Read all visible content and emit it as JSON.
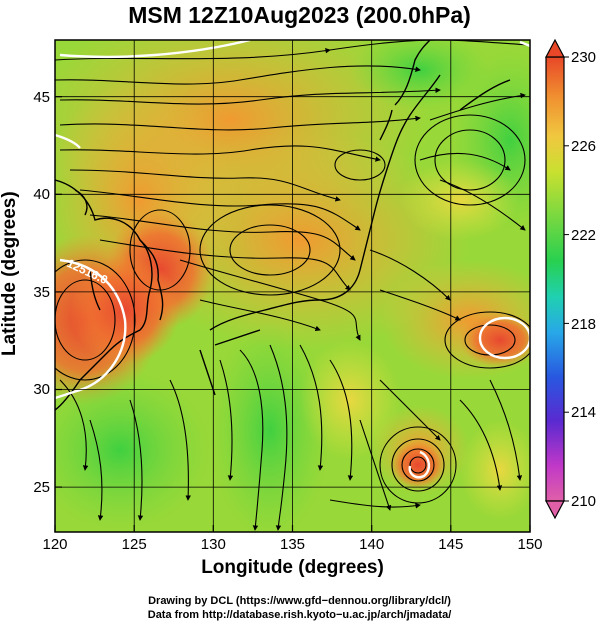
{
  "title": "MSM 12Z10Aug2023 (200.0hPa)",
  "map": {
    "x_axis": {
      "label": "Longitude (degrees)",
      "range": [
        120,
        150
      ],
      "ticks": [
        "120",
        "125",
        "130",
        "135",
        "140",
        "145",
        "150"
      ]
    },
    "y_axis": {
      "label": "Latitude  (degrees)",
      "range": [
        22.4,
        47.6
      ],
      "ticks": [
        "25",
        "30",
        "35",
        "40",
        "45"
      ]
    },
    "contour_label": "12516.0",
    "features": {
      "high_pressure_center": {
        "lon": 121.5,
        "lat": 34.3
      },
      "east_ridge_center": {
        "lon": 148.2,
        "lat": 33.2
      },
      "typhoon_center": {
        "lon": 143.1,
        "lat": 25.9
      }
    }
  },
  "colorbar": {
    "min": 210,
    "max": 230,
    "ticks": [
      "230",
      "226",
      "222",
      "218",
      "214",
      "210"
    ],
    "colors": [
      "#e05a9a",
      "#c03ad0",
      "#5a2ad0",
      "#2a50e0",
      "#28a0e8",
      "#20d0a8",
      "#28d050",
      "#70d840",
      "#b8e030",
      "#f0d040",
      "#f09a30",
      "#e85030"
    ]
  },
  "credits": {
    "line1": "Drawing by DCL (https://www.gfd−dennou.org/library/dcl/)",
    "line2": "Data from http://database.rish.kyoto−u.ac.jp/arch/jmadata/"
  }
}
